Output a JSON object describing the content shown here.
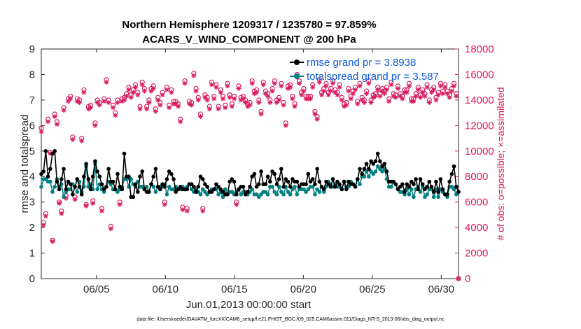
{
  "chart_data": {
    "type": "line",
    "title": "Northern Hemisphere 1209317 / 1235780 = 97.859%",
    "subtitle": "ACARS_V_WIND_COMPONENT @ 200 hPa",
    "xlabel": "Jun.01,2013 00:00:00 start",
    "ylabel": "rmse and totalspread",
    "y2label": "# of obs: o=possible; ×=assimilated",
    "footer": "data file: /Users/raeder/DAI/ATM_forcXX/CAM6_setup/f.e21.FHIST_BGC.f09_025.CAM6assim.011/Diags_NTrS_2013-06/obs_diag_output.nc",
    "xlim": [
      1,
      31.25
    ],
    "ylim": [
      0,
      9
    ],
    "y2lim": [
      0,
      18000
    ],
    "xticks": [
      5,
      10,
      15,
      20,
      25,
      30
    ],
    "xtick_labels": [
      "06/05",
      "06/10",
      "06/15",
      "06/20",
      "06/25",
      "06/30"
    ],
    "yticks": [
      "0",
      "1",
      "2",
      "3",
      "4",
      "5",
      "6",
      "7",
      "8",
      "9"
    ],
    "y2ticks": [
      "0",
      "2000",
      "4000",
      "6000",
      "8000",
      "10000",
      "12000",
      "14000",
      "16000",
      "18000"
    ],
    "legend_position": "top-right",
    "series": [
      {
        "name": "rmse grand pr = 3.8938",
        "color": "#000000",
        "marker": "filled-circle",
        "values": [
          4.1,
          4.2,
          5.0,
          4.0,
          4.3,
          4.9,
          5.0,
          3.8,
          3.5,
          3.9,
          4.3,
          3.5,
          3.8,
          3.7,
          3.3,
          3.6,
          3.9,
          3.6,
          3.3,
          4.0,
          4.5,
          3.9,
          3.5,
          4.0,
          4.6,
          4.2,
          4.0,
          3.7,
          3.5,
          3.6,
          4.3,
          3.8,
          3.8,
          3.5,
          4.1,
          3.6,
          3.5,
          4.9,
          4.0,
          4.0,
          3.2,
          3.2,
          3.7,
          3.4,
          4.0,
          4.2,
          3.5,
          3.4,
          3.4,
          3.7,
          4.0,
          4.3,
          3.6,
          3.5,
          3.7,
          3.6,
          3.9,
          4.2,
          4.1,
          3.9,
          3.4,
          3.5,
          3.6,
          3.5,
          3.5,
          3.5,
          3.7,
          3.7,
          3.6,
          3.4,
          3.6,
          4.0,
          3.9,
          3.7,
          3.6,
          3.4,
          3.4,
          3.5,
          3.7,
          3.6,
          3.5,
          3.4,
          3.3,
          3.3,
          3.8,
          3.9,
          3.8,
          3.3,
          3.5,
          3.6,
          3.6,
          3.3,
          3.4,
          3.6,
          4.0,
          4.1,
          3.6,
          3.7,
          4.2,
          3.7,
          3.7,
          4.0,
          3.8,
          4.2,
          4.1,
          3.7,
          3.9,
          4.3,
          3.6,
          3.9,
          3.8,
          3.6,
          3.9,
          3.8,
          3.8,
          3.6,
          3.7,
          3.7,
          3.7,
          4.1,
          3.8,
          3.9,
          3.7,
          4.3,
          3.8,
          3.6,
          3.5,
          3.8,
          3.7,
          3.6,
          3.9,
          3.6,
          3.8,
          3.7,
          3.5,
          3.8,
          3.5,
          3.8,
          3.7,
          3.7,
          3.6,
          3.9,
          4.3,
          4.1,
          4.3,
          4.5,
          4.3,
          4.6,
          4.5,
          4.6,
          4.9,
          4.6,
          4.4,
          4.5,
          4.2,
          3.8,
          3.8,
          3.8,
          3.7,
          3.5,
          3.6,
          3.7,
          3.4,
          3.7,
          3.6,
          3.8,
          3.7,
          3.9,
          3.5,
          3.9,
          3.7,
          3.5,
          3.6,
          3.8,
          3.6,
          3.4,
          3.8,
          3.4,
          3.9,
          3.5,
          3.3,
          3.3,
          3.8,
          4.1,
          4.4,
          3.6,
          3.4
        ]
      },
      {
        "name": "totalspread grand pr = 3.587",
        "color": "#008080",
        "marker": "filled-circle",
        "values": [
          3.6,
          3.9,
          3.9,
          3.8,
          3.8,
          3.4,
          3.6,
          3.9,
          3.6,
          3.7,
          3.2,
          3.4,
          3.5,
          3.5,
          3.7,
          3.6,
          3.4,
          3.8,
          3.4,
          3.6,
          4.4,
          3.6,
          3.7,
          3.5,
          4.5,
          3.5,
          3.7,
          3.5,
          3.4,
          3.6,
          3.8,
          3.7,
          3.5,
          3.5,
          3.4,
          3.5,
          3.6,
          3.9,
          3.9,
          3.6,
          3.9,
          3.7,
          3.6,
          3.8,
          3.6,
          3.6,
          3.5,
          3.6,
          3.4,
          3.7,
          3.6,
          3.4,
          3.6,
          3.6,
          3.6,
          3.7,
          3.3,
          3.6,
          3.5,
          3.5,
          3.6,
          3.5,
          3.5,
          3.6,
          3.5,
          3.6,
          3.7,
          3.5,
          3.4,
          3.5,
          3.4,
          3.3,
          3.5,
          3.4,
          3.3,
          3.4,
          3.5,
          3.5,
          3.5,
          3.3,
          3.4,
          3.2,
          3.5,
          3.3,
          3.4,
          3.4,
          3.3,
          3.4,
          3.5,
          3.3,
          3.4,
          3.4,
          3.3,
          3.4,
          3.5,
          3.3,
          3.3,
          3.2,
          3.3,
          3.4,
          3.4,
          3.3,
          3.6,
          3.6,
          3.4,
          3.3,
          3.6,
          3.4,
          3.3,
          3.6,
          3.4,
          3.3,
          3.5,
          3.6,
          3.3,
          3.5,
          3.5,
          3.5,
          3.4,
          3.5,
          3.6,
          3.6,
          3.3,
          3.5,
          3.4,
          3.6,
          3.4,
          3.6,
          3.8,
          3.7,
          3.6,
          3.7,
          3.6,
          3.6,
          3.5,
          3.8,
          3.6,
          3.6,
          3.8,
          3.7,
          3.6,
          3.9,
          3.7,
          4.0,
          4.0,
          4.2,
          4.0,
          4.2,
          4.1,
          4.2,
          4.4,
          4.3,
          4.2,
          4.3,
          3.9,
          3.6,
          3.6,
          3.8,
          3.7,
          3.5,
          3.4,
          3.4,
          3.3,
          3.5,
          3.3,
          3.5,
          3.2,
          3.5,
          3.6,
          3.4,
          3.6,
          3.2,
          3.3,
          3.5,
          3.5,
          3.2,
          3.5,
          3.2,
          3.5,
          3.4,
          3.3,
          3.2,
          3.6,
          3.6,
          3.5,
          3.3,
          3.4
        ]
      },
      {
        "name": "# obs possible",
        "color": "#d81b60",
        "marker": "open-circle",
        "axis": "right",
        "values": [
          11800,
          4400,
          5100,
          12500,
          9900,
          3000,
          12900,
          12300,
          6000,
          5300,
          13400,
          6500,
          14100,
          14300,
          11100,
          6400,
          14100,
          14000,
          11000,
          14800,
          5800,
          13500,
          13600,
          6100,
          12200,
          14000,
          13800,
          5500,
          14100,
          15600,
          14000,
          4100,
          13600,
          13000,
          14000,
          6000,
          14100,
          14200,
          14500,
          15000,
          14400,
          14800,
          15200,
          14600,
          13500,
          15400,
          14900,
          13500,
          14000,
          14900,
          15100,
          13300,
          14200,
          13800,
          14600,
          6000,
          15000,
          13600,
          14800,
          13900,
          13900,
          13700,
          12500,
          5600,
          15500,
          5500,
          13900,
          13800,
          16100,
          14900,
          14200,
          12900,
          5500,
          14400,
          14200,
          13500,
          15400,
          14300,
          15200,
          13500,
          14800,
          14300,
          13600,
          15300,
          14400,
          13700,
          14300,
          6000,
          15100,
          14200,
          14300,
          14000,
          13700,
          13800,
          15500,
          14700,
          14800,
          14000,
          13100,
          15400,
          14700,
          14500,
          14000,
          14900,
          15500,
          14000,
          14200,
          15300,
          13800,
          12200,
          15100,
          15200,
          14300,
          13700,
          16000,
          15500,
          14600,
          14900,
          14300,
          14300,
          14300,
          15200,
          13100,
          12700,
          15600,
          14600,
          14900,
          15300,
          14600,
          14900,
          15500,
          14800,
          14600,
          15200,
          14200,
          13700,
          13800,
          14900,
          14300,
          14700,
          15000,
          13900,
          15300,
          14200,
          14000,
          14700,
          15500,
          14000,
          14400,
          14500,
          15000,
          14500,
          14900,
          14700,
          15000,
          14100,
          15400,
          14500,
          14400,
          15100,
          14500,
          14300,
          14800,
          14800,
          15300,
          14100,
          14100,
          14500,
          15000,
          14400,
          14800,
          14500,
          15200,
          14000,
          14800,
          15000,
          14200,
          14600,
          15300,
          14700,
          15200,
          14700,
          14400,
          14900,
          15300,
          14500,
          0
        ]
      },
      {
        "name": "# obs assimilated",
        "color": "#d81b60",
        "marker": "asterisk",
        "axis": "right",
        "values": [
          11500,
          4200,
          4900,
          12300,
          9800,
          2900,
          12700,
          12100,
          5900,
          5100,
          13200,
          6300,
          13900,
          14100,
          10900,
          6200,
          13900,
          13800,
          10800,
          14600,
          5700,
          13300,
          13400,
          5900,
          12000,
          13800,
          13600,
          5300,
          13900,
          15400,
          13800,
          3900,
          13400,
          12800,
          13800,
          5800,
          13900,
          14000,
          14300,
          14800,
          14200,
          14600,
          15000,
          14400,
          13300,
          15200,
          14700,
          13300,
          13800,
          14700,
          14900,
          13100,
          14000,
          13600,
          14400,
          5800,
          14800,
          13400,
          14600,
          13700,
          13700,
          13500,
          12300,
          5400,
          15300,
          5300,
          13700,
          13600,
          15900,
          14700,
          14000,
          12700,
          5300,
          14200,
          14000,
          13300,
          15200,
          14100,
          15000,
          13300,
          14600,
          14100,
          13400,
          15100,
          14200,
          13500,
          14100,
          5800,
          14900,
          14000,
          14100,
          13800,
          13500,
          13600,
          15300,
          14500,
          14600,
          13800,
          12900,
          15200,
          14500,
          14300,
          13800,
          14700,
          15300,
          13800,
          14000,
          15100,
          13600,
          12000,
          14900,
          15000,
          14100,
          13500,
          15800,
          15300,
          14400,
          14700,
          14100,
          14100,
          14100,
          15000,
          12900,
          12500,
          15400,
          14400,
          14700,
          15100,
          14400,
          14700,
          15300,
          14600,
          14400,
          15000,
          14000,
          13500,
          13600,
          14700,
          14100,
          14500,
          14800,
          13700,
          15100,
          14000,
          13800,
          14500,
          15300,
          13800,
          14200,
          14300,
          14800,
          14300,
          14700,
          14500,
          14800,
          13900,
          15200,
          14300,
          14200,
          14900,
          14300,
          14100,
          14600,
          14600,
          15100,
          13900,
          13900,
          14300,
          14800,
          14200,
          14600,
          14300,
          15000,
          13800,
          14600,
          14800,
          14000,
          14400,
          15100,
          14500,
          15000,
          14500,
          14200,
          14700,
          15100,
          14300,
          0
        ]
      }
    ]
  }
}
